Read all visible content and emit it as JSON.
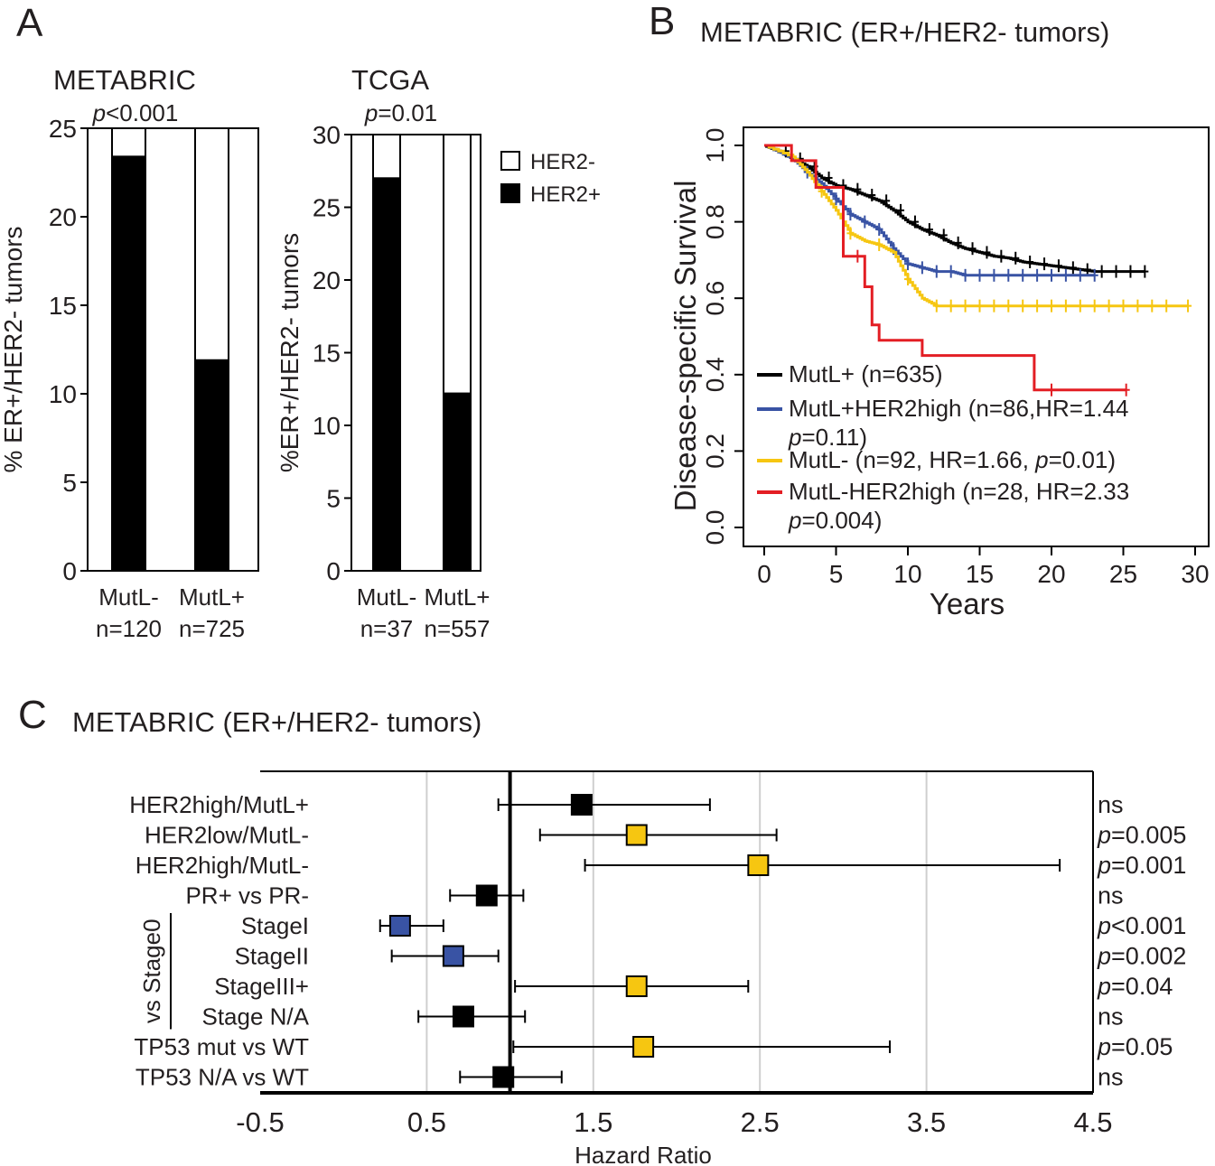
{
  "panel_a": {
    "letter": "A",
    "legend": {
      "her2_neg": "HER2-",
      "her2_pos": "HER2+"
    },
    "colors": {
      "her2_neg": "#ffffff",
      "her2_pos": "#000000"
    }
  },
  "panel_b": {
    "letter": "B",
    "title": "METABRIC (ER+/HER2- tumors)"
  },
  "panel_c": {
    "letter": "C",
    "title": "METABRIC (ER+/HER2- tumors)",
    "stage_bracket_label": "vs Stage0"
  },
  "chart_data": [
    {
      "id": "metabric_bar",
      "type": "bar",
      "stacked": true,
      "title": "METABRIC",
      "pvalue": {
        "italic": "p",
        "text": "<0.001"
      },
      "ylabel": "% ER+/HER2- tumors",
      "ylim": [
        0,
        25
      ],
      "yticks": [
        0,
        5,
        10,
        15,
        20,
        25
      ],
      "categories": [
        "MutL-",
        "MutL+"
      ],
      "category_n": [
        "n=120",
        "n=725"
      ],
      "series": [
        {
          "name": "HER2+",
          "values": [
            23.4,
            11.9
          ]
        },
        {
          "name": "HER2-",
          "values": [
            1.6,
            13.1
          ]
        }
      ]
    },
    {
      "id": "tcga_bar",
      "type": "bar",
      "stacked": true,
      "title": "TCGA",
      "pvalue": {
        "italic": "p",
        "text": "=0.01"
      },
      "ylabel": "%ER+/HER2- tumors",
      "ylim": [
        0,
        30
      ],
      "yticks": [
        0,
        5,
        10,
        15,
        20,
        25,
        30
      ],
      "categories": [
        "MutL-",
        "MutL+"
      ],
      "category_n": [
        "n=37",
        "n=557"
      ],
      "series": [
        {
          "name": "HER2+",
          "values": [
            27.0,
            12.2
          ]
        },
        {
          "name": "HER2-",
          "values": [
            3.0,
            17.8
          ]
        }
      ]
    },
    {
      "id": "survival",
      "type": "line",
      "subtype": "kaplan-meier",
      "xlabel": "Years",
      "ylabel": "Disease-specific Survival",
      "xlim": [
        0,
        30
      ],
      "ylim": [
        0,
        1
      ],
      "xticks": [
        0,
        5,
        10,
        15,
        20,
        25,
        30
      ],
      "yticks": [
        "0.0",
        "0.2",
        "0.4",
        "0.6",
        "0.8",
        "1.0"
      ],
      "series": [
        {
          "name": "MutL+",
          "color": "#000000",
          "legend_lines": [
            {
              "text": "MutL+ (n=635)"
            }
          ],
          "x": [
            0,
            1,
            2,
            3,
            4,
            5,
            6,
            7,
            8,
            9,
            10,
            11,
            12,
            13,
            14,
            15,
            16,
            17,
            18,
            19,
            20,
            21,
            22,
            23,
            24,
            25,
            26.5
          ],
          "y": [
            1.0,
            0.985,
            0.965,
            0.945,
            0.915,
            0.895,
            0.885,
            0.87,
            0.855,
            0.83,
            0.8,
            0.78,
            0.765,
            0.745,
            0.73,
            0.72,
            0.71,
            0.705,
            0.695,
            0.69,
            0.685,
            0.68,
            0.675,
            0.67,
            0.67,
            0.67,
            0.67
          ],
          "censor_x": [
            1.5,
            2.5,
            3.5,
            4.5,
            5.5,
            6.5,
            7.5,
            8.5,
            9.5,
            10.5,
            11.5,
            12.5,
            13.5,
            14.5,
            15.5,
            16.5,
            17.5,
            18.5,
            19.5,
            20.5,
            21.5,
            22.5,
            23.5,
            24.5,
            25.5,
            26.5
          ]
        },
        {
          "name": "MutL+HER2high",
          "color": "#3953a4",
          "legend_lines": [
            {
              "text": "MutL+HER2high (n=86,HR=1.44"
            },
            {
              "italic": "p",
              "text": "=0.11)"
            }
          ],
          "x": [
            0,
            2,
            3,
            4,
            5,
            6,
            7,
            8,
            9,
            10,
            11,
            12,
            13,
            14,
            23
          ],
          "y": [
            1.0,
            0.965,
            0.93,
            0.9,
            0.86,
            0.82,
            0.8,
            0.78,
            0.73,
            0.69,
            0.68,
            0.67,
            0.67,
            0.66,
            0.66
          ],
          "censor_x": [
            3,
            5,
            6,
            7,
            8,
            9,
            10,
            11,
            12,
            13,
            14,
            15,
            16,
            17,
            18,
            19,
            20,
            21,
            22,
            23
          ]
        },
        {
          "name": "MutL-",
          "color": "#f6c611",
          "legend_lines": [
            {
              "text": "MutL- (n=92, HR=1.66, "
            },
            {
              "italic": "p",
              "text": "=0.01)",
              "inline": true
            }
          ],
          "x": [
            0,
            2,
            3,
            4,
            5,
            6,
            7,
            8,
            9,
            10,
            11,
            12,
            29.5
          ],
          "y": [
            1.0,
            0.97,
            0.93,
            0.88,
            0.83,
            0.77,
            0.75,
            0.74,
            0.72,
            0.65,
            0.6,
            0.58,
            0.58
          ],
          "censor_x": [
            4,
            6,
            8,
            10,
            12,
            13,
            14,
            15,
            16,
            17,
            18,
            19,
            20,
            21,
            22,
            23,
            24,
            25,
            26,
            27,
            28,
            29.5
          ]
        },
        {
          "name": "MutL-HER2high",
          "color": "#e31e24",
          "legend_lines": [
            {
              "text": "MutL-HER2high (n=28, HR=2.33"
            },
            {
              "italic": "p",
              "text": "=0.004)"
            }
          ],
          "x": [
            0,
            1.9,
            1.9,
            3.6,
            3.6,
            5.5,
            5.5,
            7.0,
            7.0,
            7.5,
            7.5,
            8.0,
            8.0,
            11.0,
            11.0,
            18.8,
            18.8,
            25.2
          ],
          "y": [
            1.0,
            1.0,
            0.96,
            0.96,
            0.89,
            0.89,
            0.71,
            0.71,
            0.63,
            0.63,
            0.53,
            0.53,
            0.49,
            0.49,
            0.45,
            0.45,
            0.36,
            0.36
          ],
          "step": "pre-drawn",
          "censor_x": [
            6.5,
            20,
            25.2
          ]
        }
      ]
    },
    {
      "id": "forest",
      "type": "scatter",
      "subtype": "forest",
      "xlabel": "Hazard Ratio",
      "xlim": [
        -0.5,
        4.5
      ],
      "xticks": [
        "-0.5",
        "0.5",
        "1.5",
        "2.5",
        "3.5",
        "4.5"
      ],
      "reference_line": 1.0,
      "colors": {
        "black": "#000000",
        "yellow": "#f6c611",
        "blue": "#3953a4"
      },
      "rows": [
        {
          "label": "HER2high/MutL+",
          "hr": 1.43,
          "lo": 0.93,
          "hi": 2.2,
          "color": "black",
          "sig": {
            "text": "ns"
          }
        },
        {
          "label": "HER2low/MutL-",
          "hr": 1.76,
          "lo": 1.18,
          "hi": 2.6,
          "color": "yellow",
          "sig": {
            "italic": "p",
            "text": "=0.005"
          }
        },
        {
          "label": "HER2high/MutL-",
          "hr": 2.49,
          "lo": 1.45,
          "hi": 4.3,
          "color": "yellow",
          "sig": {
            "italic": "p",
            "text": "=0.001"
          }
        },
        {
          "label": "PR+ vs PR-",
          "hr": 0.86,
          "lo": 0.64,
          "hi": 1.08,
          "color": "black",
          "sig": {
            "text": "ns"
          }
        },
        {
          "label": "StageI",
          "hr": 0.34,
          "lo": 0.22,
          "hi": 0.6,
          "color": "blue",
          "sig": {
            "italic": "p",
            "text": "<0.001"
          }
        },
        {
          "label": "StageII",
          "hr": 0.66,
          "lo": 0.29,
          "hi": 0.93,
          "color": "blue",
          "sig": {
            "italic": "p",
            "text": "=0.002"
          }
        },
        {
          "label": "StageIII+",
          "hr": 1.76,
          "lo": 1.03,
          "hi": 2.43,
          "color": "yellow",
          "sig": {
            "italic": "p",
            "text": "=0.04"
          }
        },
        {
          "label": "Stage N/A",
          "hr": 0.72,
          "lo": 0.45,
          "hi": 1.09,
          "color": "black",
          "sig": {
            "text": "ns"
          }
        },
        {
          "label": "TP53 mut vs WT",
          "hr": 1.8,
          "lo": 1.02,
          "hi": 3.28,
          "color": "yellow",
          "sig": {
            "italic": "p",
            "text": "=0.05"
          }
        },
        {
          "label": "TP53 N/A vs WT",
          "hr": 0.96,
          "lo": 0.7,
          "hi": 1.31,
          "color": "black",
          "sig": {
            "text": "ns"
          }
        }
      ]
    }
  ]
}
